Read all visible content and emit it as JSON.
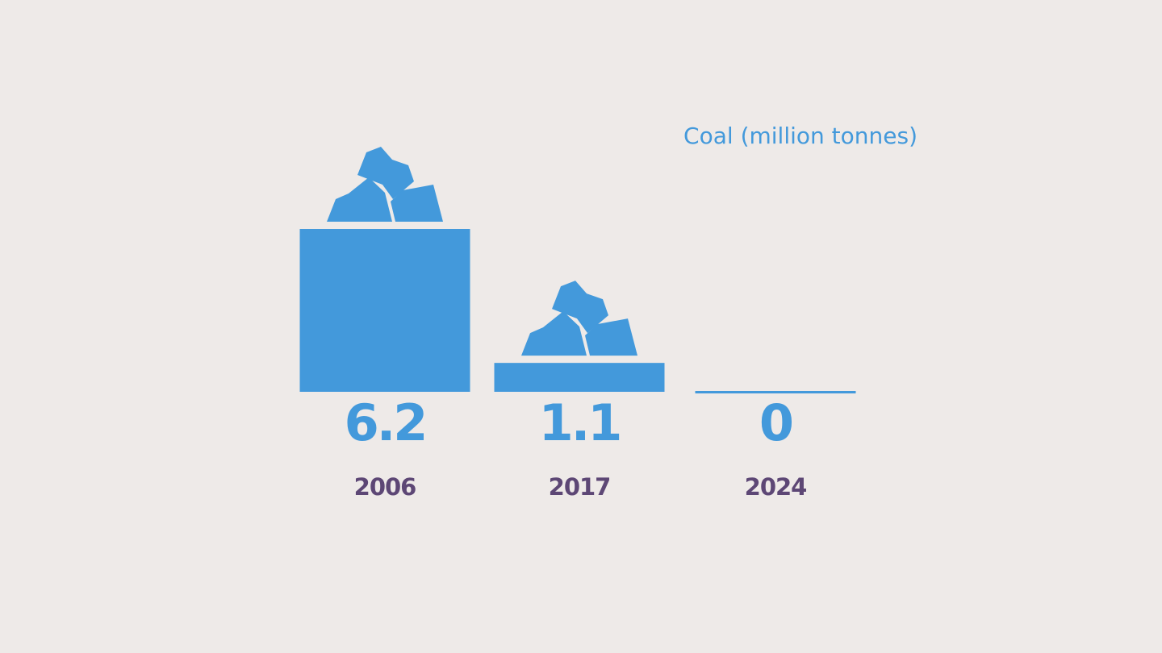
{
  "chart_data": {
    "type": "bar",
    "title": "Coal (million tonnes)",
    "categories": [
      "2006",
      "2017",
      "2024"
    ],
    "values": [
      6.2,
      1.1,
      0
    ],
    "value_labels": [
      "6.2",
      "1.1",
      "0"
    ],
    "series": [
      {
        "values": [
          6.2,
          1.1,
          0
        ]
      }
    ],
    "xlabel": "",
    "ylabel": "",
    "ylim": [
      0,
      6.2
    ],
    "grid": false,
    "legend": "none",
    "bar_icon": "coal-lumps-icon"
  },
  "colors": {
    "background": "#EEEAE8",
    "bar": "#4399DB",
    "value_text": "#4399DB",
    "category_text": "#5D4775",
    "title_text": "#4399DB"
  }
}
